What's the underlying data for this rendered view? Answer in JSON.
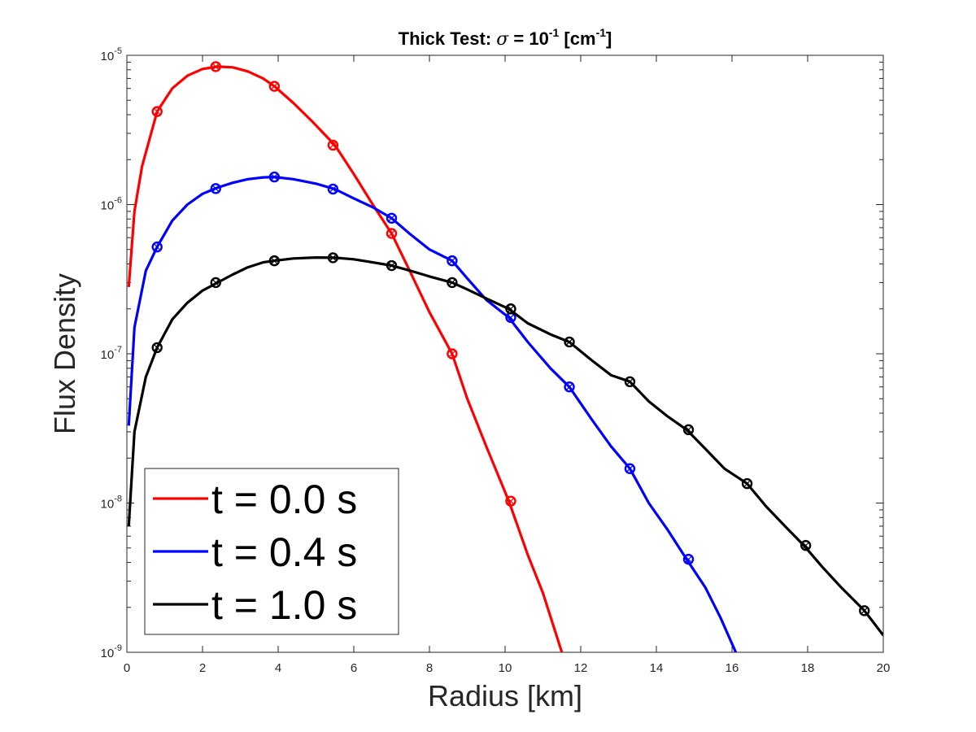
{
  "chart_data": {
    "type": "line",
    "title_prefix": "Thick Test: ",
    "title_symbol": "σ",
    "title_eq": " = 10",
    "title_exp": "-1",
    "title_unit_open": " [cm",
    "title_unit_exp": "-1",
    "title_unit_close": "]",
    "xlabel": "Radius [km]",
    "ylabel": "Flux Density",
    "xlim": [
      0,
      20
    ],
    "ylim": [
      1e-09,
      1e-05
    ],
    "yscale": "log",
    "x_ticks": [
      "0",
      "2",
      "4",
      "6",
      "8",
      "10",
      "12",
      "14",
      "16",
      "18",
      "20"
    ],
    "y_ticks": [
      {
        "base": "10",
        "exp": "-9"
      },
      {
        "base": "10",
        "exp": "-8"
      },
      {
        "base": "10",
        "exp": "-7"
      },
      {
        "base": "10",
        "exp": "-6"
      },
      {
        "base": "10",
        "exp": "-5"
      }
    ],
    "legend_position": "bottom-left",
    "series": [
      {
        "name": "t = 0.0 s",
        "color": "#ff0000",
        "curve": [
          [
            0.05,
            2.8e-07
          ],
          [
            0.2,
            9e-07
          ],
          [
            0.4,
            1.8e-06
          ],
          [
            0.8,
            4.2e-06
          ],
          [
            1.2,
            6e-06
          ],
          [
            1.6,
            7.3e-06
          ],
          [
            2.0,
            8.1e-06
          ],
          [
            2.4,
            8.4e-06
          ],
          [
            2.8,
            8.3e-06
          ],
          [
            3.2,
            7.8e-06
          ],
          [
            3.6,
            7e-06
          ],
          [
            3.9,
            6.2e-06
          ],
          [
            4.4,
            4.8e-06
          ],
          [
            4.9,
            3.6e-06
          ],
          [
            5.5,
            2.5e-06
          ],
          [
            6.0,
            1.6e-06
          ],
          [
            6.5,
            1e-06
          ],
          [
            7.0,
            6.4e-07
          ],
          [
            7.5,
            3.5e-07
          ],
          [
            8.0,
            1.9e-07
          ],
          [
            8.6,
            1e-07
          ],
          [
            9.0,
            5e-08
          ],
          [
            9.5,
            2.4e-08
          ],
          [
            10.1,
            1.03e-08
          ],
          [
            10.6,
            4.5e-09
          ],
          [
            11.0,
            2.5e-09
          ],
          [
            11.5,
            1e-09
          ]
        ],
        "markers": [
          [
            0.8,
            4.2e-06
          ],
          [
            2.35,
            8.4e-06
          ],
          [
            3.9,
            6.2e-06
          ],
          [
            5.45,
            2.5e-06
          ],
          [
            7.0,
            6.4e-07
          ],
          [
            8.6,
            1e-07
          ],
          [
            10.15,
            1.03e-08
          ]
        ]
      },
      {
        "name": "t = 0.4 s",
        "color": "#0000ff",
        "curve": [
          [
            0.05,
            3.3e-08
          ],
          [
            0.2,
            1.5e-07
          ],
          [
            0.5,
            3.6e-07
          ],
          [
            0.8,
            5.2e-07
          ],
          [
            1.2,
            7.8e-07
          ],
          [
            1.6,
            1e-06
          ],
          [
            2.0,
            1.18e-06
          ],
          [
            2.4,
            1.3e-06
          ],
          [
            2.8,
            1.4e-06
          ],
          [
            3.2,
            1.48e-06
          ],
          [
            3.6,
            1.52e-06
          ],
          [
            3.9,
            1.53e-06
          ],
          [
            4.4,
            1.48e-06
          ],
          [
            5.0,
            1.38e-06
          ],
          [
            5.5,
            1.27e-06
          ],
          [
            6.0,
            1.1e-06
          ],
          [
            6.5,
            9.6e-07
          ],
          [
            7.0,
            8.1e-07
          ],
          [
            7.5,
            6.3e-07
          ],
          [
            8.0,
            5e-07
          ],
          [
            8.6,
            4.2e-07
          ],
          [
            9.0,
            3.2e-07
          ],
          [
            9.5,
            2.3e-07
          ],
          [
            10.1,
            1.75e-07
          ],
          [
            10.6,
            1.2e-07
          ],
          [
            11.2,
            8e-08
          ],
          [
            11.7,
            6e-08
          ],
          [
            12.3,
            3.6e-08
          ],
          [
            12.8,
            2.4e-08
          ],
          [
            13.3,
            1.7e-08
          ],
          [
            13.8,
            1e-08
          ],
          [
            14.3,
            6.6e-09
          ],
          [
            14.8,
            4.2e-09
          ],
          [
            15.3,
            2.7e-09
          ],
          [
            15.7,
            1.7e-09
          ],
          [
            16.1,
            1e-09
          ]
        ],
        "markers": [
          [
            0.8,
            5.2e-07
          ],
          [
            2.35,
            1.28e-06
          ],
          [
            3.9,
            1.53e-06
          ],
          [
            5.45,
            1.27e-06
          ],
          [
            7.0,
            8.1e-07
          ],
          [
            8.6,
            4.2e-07
          ],
          [
            10.15,
            1.75e-07
          ],
          [
            11.7,
            6e-08
          ],
          [
            13.3,
            1.7e-08
          ],
          [
            14.85,
            4.2e-09
          ]
        ]
      },
      {
        "name": "t = 1.0 s",
        "color": "#000000",
        "curve": [
          [
            0.05,
            7e-09
          ],
          [
            0.2,
            3e-08
          ],
          [
            0.5,
            7e-08
          ],
          [
            0.8,
            1.1e-07
          ],
          [
            1.2,
            1.7e-07
          ],
          [
            1.6,
            2.2e-07
          ],
          [
            2.0,
            2.65e-07
          ],
          [
            2.4,
            3e-07
          ],
          [
            2.8,
            3.4e-07
          ],
          [
            3.2,
            3.8e-07
          ],
          [
            3.6,
            4.1e-07
          ],
          [
            3.9,
            4.2e-07
          ],
          [
            4.4,
            4.35e-07
          ],
          [
            5.0,
            4.42e-07
          ],
          [
            5.5,
            4.4e-07
          ],
          [
            6.0,
            4.3e-07
          ],
          [
            6.5,
            4.1e-07
          ],
          [
            7.0,
            3.9e-07
          ],
          [
            7.5,
            3.6e-07
          ],
          [
            8.0,
            3.3e-07
          ],
          [
            8.6,
            3e-07
          ],
          [
            9.0,
            2.7e-07
          ],
          [
            9.5,
            2.35e-07
          ],
          [
            10.1,
            2e-07
          ],
          [
            10.6,
            1.6e-07
          ],
          [
            11.2,
            1.35e-07
          ],
          [
            11.7,
            1.2e-07
          ],
          [
            12.3,
            9e-08
          ],
          [
            12.8,
            7.2e-08
          ],
          [
            13.3,
            6.5e-08
          ],
          [
            13.8,
            4.8e-08
          ],
          [
            14.3,
            3.8e-08
          ],
          [
            14.8,
            3.1e-08
          ],
          [
            15.3,
            2.3e-08
          ],
          [
            15.8,
            1.7e-08
          ],
          [
            16.4,
            1.35e-08
          ],
          [
            16.9,
            9.5e-09
          ],
          [
            17.4,
            7e-09
          ],
          [
            17.9,
            5.2e-09
          ],
          [
            18.4,
            3.7e-09
          ],
          [
            18.9,
            2.7e-09
          ],
          [
            19.5,
            1.9e-09
          ],
          [
            20.0,
            1.3e-09
          ]
        ],
        "markers": [
          [
            0.8,
            1.1e-07
          ],
          [
            2.35,
            3e-07
          ],
          [
            3.9,
            4.2e-07
          ],
          [
            5.45,
            4.4e-07
          ],
          [
            7.0,
            3.9e-07
          ],
          [
            8.6,
            3e-07
          ],
          [
            10.15,
            2e-07
          ],
          [
            11.7,
            1.2e-07
          ],
          [
            13.3,
            6.5e-08
          ],
          [
            14.85,
            3.1e-08
          ],
          [
            16.4,
            1.35e-08
          ],
          [
            17.95,
            5.2e-09
          ],
          [
            19.5,
            1.9e-09
          ]
        ]
      }
    ]
  }
}
